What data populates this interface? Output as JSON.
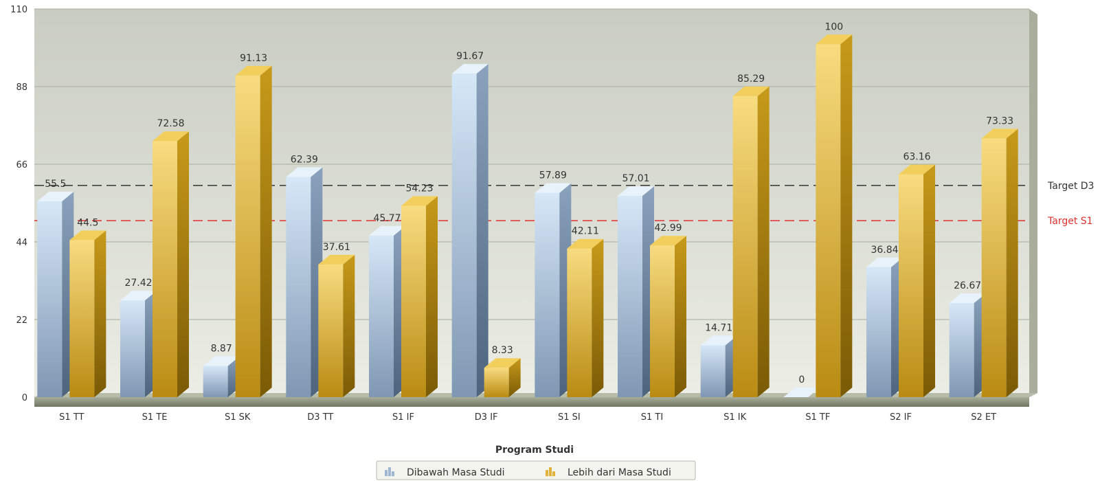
{
  "chart_data": {
    "type": "bar",
    "xlabel": "Program Studi",
    "ylabel": "",
    "ylim": [
      0,
      110
    ],
    "y_ticks": [
      0,
      22,
      44,
      66,
      88,
      110
    ],
    "grid": true,
    "legend_position": "bottom",
    "categories": [
      "S1 TT",
      "S1 TE",
      "S1 SK",
      "D3 TT",
      "S1 IF",
      "D3 IF",
      "S1 SI",
      "S1 TI",
      "S1 IK",
      "S1 TF",
      "S2 IF",
      "S2 ET"
    ],
    "series": [
      {
        "name": "Dibawah Masa Studi",
        "color": "#9fb7d3",
        "values": [
          55.5,
          27.42,
          8.87,
          62.39,
          45.77,
          91.67,
          57.89,
          57.01,
          14.71,
          0,
          36.84,
          26.67
        ]
      },
      {
        "name": "Lebih dari Masa Studi",
        "color": "#e2b23a",
        "values": [
          44.5,
          72.58,
          91.13,
          37.61,
          54.23,
          8.33,
          42.11,
          42.99,
          85.29,
          100,
          63.16,
          73.33
        ]
      }
    ],
    "target_lines": [
      {
        "label": "Target D3",
        "value": 60,
        "color": "#333333"
      },
      {
        "label": "Target S1",
        "value": 50,
        "color": "#e03030"
      }
    ]
  }
}
